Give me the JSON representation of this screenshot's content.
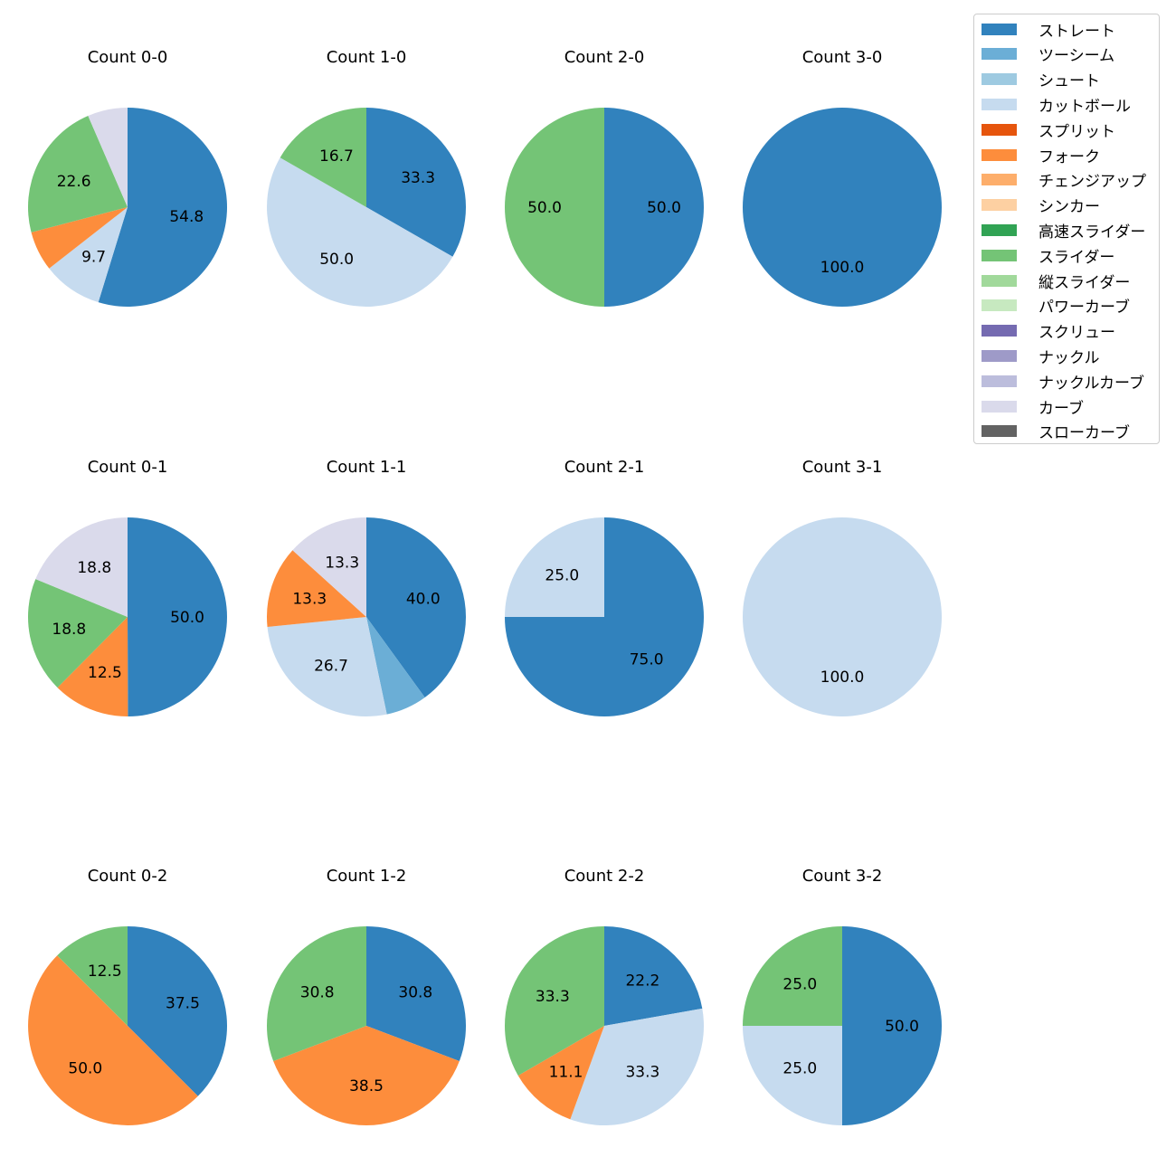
{
  "colors": {
    "ストレート": "#3182bd",
    "ツーシーム": "#6baed6",
    "シュート": "#9ecae1",
    "カットボール": "#c6dbef",
    "スプリット": "#e6550d",
    "フォーク": "#fd8d3c",
    "チェンジアップ": "#fdae6b",
    "シンカー": "#fdd0a2",
    "高速スライダー": "#31a354",
    "スライダー": "#74c476",
    "縦スライダー": "#a1d99b",
    "パワーカーブ": "#c7e9c0",
    "スクリュー": "#756bb1",
    "ナックル": "#9e9ac8",
    "ナックルカーブ": "#bcbddc",
    "カーブ": "#dadaeb",
    "スローカーブ": "#636363"
  },
  "legend": [
    "ストレート",
    "ツーシーム",
    "シュート",
    "カットボール",
    "スプリット",
    "フォーク",
    "チェンジアップ",
    "シンカー",
    "高速スライダー",
    "スライダー",
    "縦スライダー",
    "パワーカーブ",
    "スクリュー",
    "ナックル",
    "ナックルカーブ",
    "カーブ",
    "スローカーブ"
  ],
  "chart_data": [
    {
      "type": "pie",
      "title": "Count 0-0",
      "slices": [
        {
          "label": "ストレート",
          "value": 54.8
        },
        {
          "label": "カットボール",
          "value": 9.7
        },
        {
          "label": "フォーク",
          "value": 6.5
        },
        {
          "label": "スライダー",
          "value": 22.6
        },
        {
          "label": "カーブ",
          "value": 6.5
        }
      ]
    },
    {
      "type": "pie",
      "title": "Count 1-0",
      "slices": [
        {
          "label": "ストレート",
          "value": 33.3
        },
        {
          "label": "カットボール",
          "value": 50.0
        },
        {
          "label": "スライダー",
          "value": 16.7
        }
      ]
    },
    {
      "type": "pie",
      "title": "Count 2-0",
      "slices": [
        {
          "label": "ストレート",
          "value": 50.0
        },
        {
          "label": "スライダー",
          "value": 50.0
        }
      ]
    },
    {
      "type": "pie",
      "title": "Count 3-0",
      "slices": [
        {
          "label": "ストレート",
          "value": 100.0
        }
      ]
    },
    {
      "type": "pie",
      "title": "Count 0-1",
      "slices": [
        {
          "label": "ストレート",
          "value": 50.0
        },
        {
          "label": "フォーク",
          "value": 12.5
        },
        {
          "label": "スライダー",
          "value": 18.8
        },
        {
          "label": "カーブ",
          "value": 18.8
        }
      ]
    },
    {
      "type": "pie",
      "title": "Count 1-1",
      "slices": [
        {
          "label": "ストレート",
          "value": 40.0
        },
        {
          "label": "ツーシーム",
          "value": 6.7
        },
        {
          "label": "カットボール",
          "value": 26.7
        },
        {
          "label": "フォーク",
          "value": 13.3
        },
        {
          "label": "カーブ",
          "value": 13.3
        }
      ]
    },
    {
      "type": "pie",
      "title": "Count 2-1",
      "slices": [
        {
          "label": "ストレート",
          "value": 75.0
        },
        {
          "label": "カットボール",
          "value": 25.0
        }
      ]
    },
    {
      "type": "pie",
      "title": "Count 3-1",
      "slices": [
        {
          "label": "カットボール",
          "value": 100.0
        }
      ]
    },
    {
      "type": "pie",
      "title": "Count 0-2",
      "slices": [
        {
          "label": "ストレート",
          "value": 37.5
        },
        {
          "label": "フォーク",
          "value": 50.0
        },
        {
          "label": "スライダー",
          "value": 12.5
        }
      ]
    },
    {
      "type": "pie",
      "title": "Count 1-2",
      "slices": [
        {
          "label": "ストレート",
          "value": 30.8
        },
        {
          "label": "フォーク",
          "value": 38.5
        },
        {
          "label": "スライダー",
          "value": 30.8
        }
      ]
    },
    {
      "type": "pie",
      "title": "Count 2-2",
      "slices": [
        {
          "label": "ストレート",
          "value": 22.2
        },
        {
          "label": "カットボール",
          "value": 33.3
        },
        {
          "label": "フォーク",
          "value": 11.1
        },
        {
          "label": "スライダー",
          "value": 33.3
        }
      ]
    },
    {
      "type": "pie",
      "title": "Count 3-2",
      "slices": [
        {
          "label": "ストレート",
          "value": 50.0
        },
        {
          "label": "カットボール",
          "value": 25.0
        },
        {
          "label": "スライダー",
          "value": 25.0
        }
      ]
    }
  ]
}
